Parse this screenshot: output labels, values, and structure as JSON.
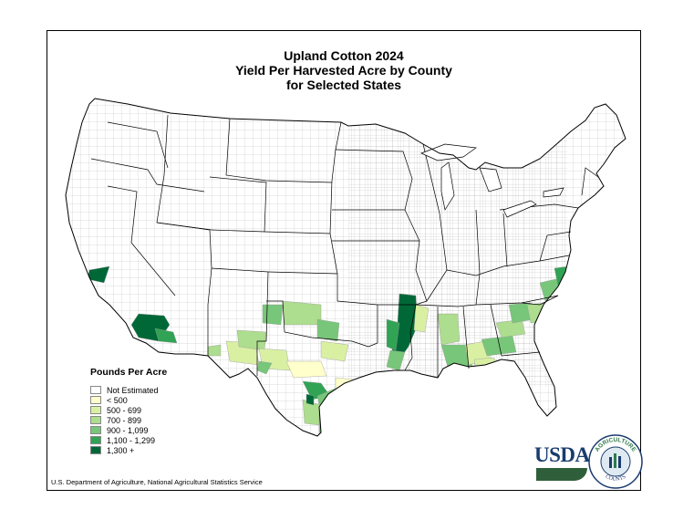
{
  "title": {
    "line1": "Upland Cotton 2024",
    "line2": "Yield Per Harvested Acre by County",
    "line3": "for Selected States"
  },
  "legend": {
    "title": "Pounds Per Acre",
    "items": [
      {
        "label": "Not Estimated",
        "color": "#ffffff"
      },
      {
        "label": "< 500",
        "color": "#ffffcc"
      },
      {
        "label": "500 - 699",
        "color": "#d9f0a3"
      },
      {
        "label": "700 - 899",
        "color": "#addd8e"
      },
      {
        "label": "900 - 1,099",
        "color": "#78c679"
      },
      {
        "label": "1,100 - 1,299",
        "color": "#31a354"
      },
      {
        "label": "1,300 +",
        "color": "#006837"
      }
    ]
  },
  "footer": "U.S. Department of Agriculture, National Agricultural Statistics Service",
  "logo": {
    "usda_text": "USDA",
    "seal_top": "AGRICULTURE",
    "seal_bottom": "COUNTS"
  },
  "colors": {
    "border": "#000000",
    "county_line": "#9a9a9a",
    "state_line": "#000000",
    "usda_blue": "#1a3c6e",
    "usda_green": "#2f5f3a"
  }
}
